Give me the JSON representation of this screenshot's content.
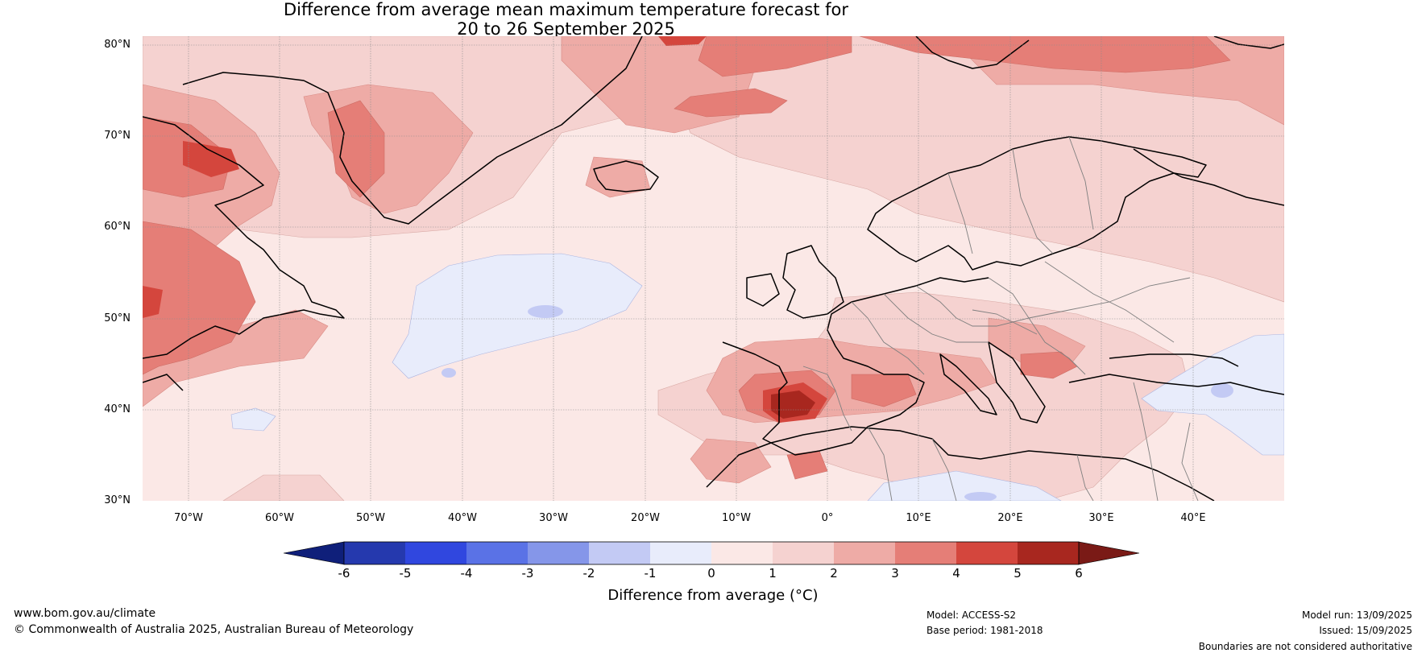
{
  "title": {
    "line1": "Difference from average mean maximum temperature forecast for",
    "line2": "20 to 26 September 2025"
  },
  "map": {
    "projection": "equirectangular",
    "lon_range": [
      -75,
      50
    ],
    "lat_range": [
      30,
      81
    ],
    "lat_labels": [
      "80°N",
      "70°N",
      "60°N",
      "50°N",
      "40°N",
      "30°N"
    ],
    "lon_labels": [
      "70°W",
      "60°W",
      "50°W",
      "40°W",
      "30°W",
      "20°W",
      "10°W",
      "0°",
      "10°E",
      "20°E",
      "30°E",
      "40°E"
    ],
    "background_color": "#fbe8e6",
    "coastline_color": "#000000",
    "border_color": "#808080"
  },
  "colorbar": {
    "ticks": [
      "-6",
      "-5",
      "-4",
      "-3",
      "-2",
      "-1",
      "0",
      "1",
      "2",
      "3",
      "4",
      "5",
      "6"
    ],
    "colors": [
      "#0f1f7a",
      "#2539ae",
      "#3047df",
      "#5a72e6",
      "#8596e9",
      "#c3caf4",
      "#e8ecfb",
      "#fbe8e6",
      "#f5d2d0",
      "#eeaba6",
      "#e57e77",
      "#d4463d",
      "#a8271f",
      "#7a1a16"
    ],
    "label": "Difference from average (°C)"
  },
  "footer": {
    "website": "www.bom.gov.au/climate",
    "copyright": "© Commonwealth of Australia 2025, Australian Bureau of Meteorology",
    "model": "Model: ACCESS-S2",
    "base_period": "Base period: 1981-2018",
    "model_run": "Model run: 13/09/2025",
    "issued": "Issued: 15/09/2025",
    "disclaimer": "Boundaries are not considered authoritative"
  }
}
